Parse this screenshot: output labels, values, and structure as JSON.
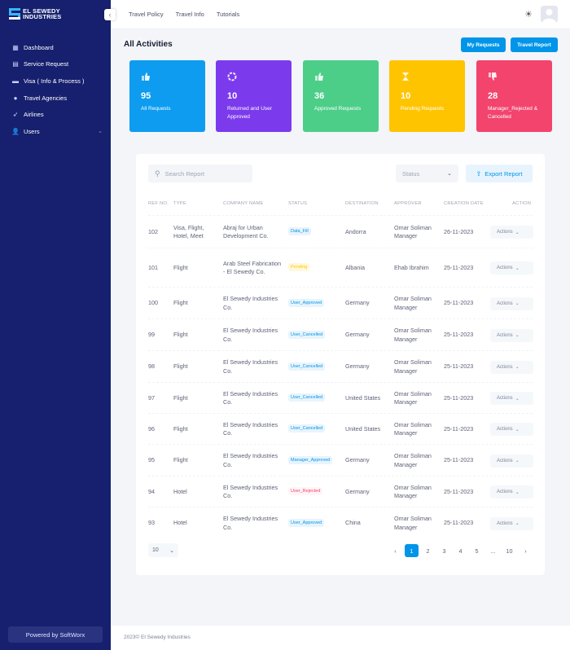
{
  "brand": {
    "name": "EL SEWEDY INDUSTRIES",
    "line1": "EL SEWEDY",
    "line2": "INDUSTRIES"
  },
  "sidebar": {
    "items": [
      {
        "label": "Dashboard",
        "icon": "dashboard-icon"
      },
      {
        "label": "Service Request",
        "icon": "service-request-icon"
      },
      {
        "label": "Visa ( Info & Process )",
        "icon": "visa-icon"
      },
      {
        "label": "Travel Agencies",
        "icon": "travel-agencies-icon"
      },
      {
        "label": "Airlines",
        "icon": "airlines-icon"
      },
      {
        "label": "Users",
        "icon": "users-icon"
      }
    ],
    "powered": "Powered by SoftWorx"
  },
  "topnav": {
    "items": [
      "Travel Policy",
      "Travel Info",
      "Tutorials"
    ]
  },
  "page": {
    "title": "All Activities",
    "my_requests": "My Requests",
    "travel_report": "Travel Report"
  },
  "stats": [
    {
      "value": "95",
      "label": "All Requests",
      "color": "#0d9cf0"
    },
    {
      "value": "10",
      "label": "Returned and User Approved",
      "color": "#7c3aed"
    },
    {
      "value": "36",
      "label": "Approved Requests",
      "color": "#4cce88"
    },
    {
      "value": "10",
      "label": "Pending Requests",
      "color": "#ffc400"
    },
    {
      "value": "28",
      "label": "Manager_Rejected & Cancelled",
      "color": "#f2446d"
    }
  ],
  "filters": {
    "search_placeholder": "Search Report",
    "status_placeholder": "Status",
    "export": "Export Report"
  },
  "table": {
    "columns": [
      "REF NO.",
      "TYPE",
      "COMPANY NAME",
      "STATUS",
      "DESTINATION",
      "APPROVER",
      "CREATION DATE",
      "ACTION"
    ],
    "rows": [
      {
        "ref": "102",
        "type": "Visa, Flight, Hotel, Meet",
        "company": "Abraj for Urban Development Co.",
        "status": "Data_Fill",
        "destination": "Andorra",
        "approver": "Omar Soliman Manager",
        "date": "26-11-2023",
        "action": "Actions"
      },
      {
        "ref": "101",
        "type": "Flight",
        "company": "Arab Steel Fabrication - El Sewedy Co.",
        "status": "Pending",
        "destination": "Albania",
        "approver": "Ehab Ibrahim",
        "date": "25-11-2023",
        "action": "Actions"
      },
      {
        "ref": "100",
        "type": "Flight",
        "company": "El Sewedy Industries Co.",
        "status": "User_Approved",
        "destination": "Germany",
        "approver": "Omar Soliman Manager",
        "date": "25-11-2023",
        "action": "Actions"
      },
      {
        "ref": "99",
        "type": "Flight",
        "company": "El Sewedy Industries Co.",
        "status": "User_Cancelled",
        "destination": "Germany",
        "approver": "Omar Soliman Manager",
        "date": "25-11-2023",
        "action": "Actions"
      },
      {
        "ref": "98",
        "type": "Flight",
        "company": "El Sewedy Industries Co.",
        "status": "User_Cancelled",
        "destination": "Germany",
        "approver": "Omar Soliman Manager",
        "date": "25-11-2023",
        "action": "Actions"
      },
      {
        "ref": "97",
        "type": "Flight",
        "company": "El Sewedy Industries Co.",
        "status": "User_Cancelled",
        "destination": "United States",
        "approver": "Omar Soliman Manager",
        "date": "25-11-2023",
        "action": "Actions"
      },
      {
        "ref": "96",
        "type": "Flight",
        "company": "El Sewedy Industries Co.",
        "status": "User_Cancelled",
        "destination": "United States",
        "approver": "Omar Soliman Manager",
        "date": "25-11-2023",
        "action": "Actions"
      },
      {
        "ref": "95",
        "type": "Flight",
        "company": "El Sewedy Industries Co.",
        "status": "Manager_Approved",
        "destination": "Germany",
        "approver": "Omar Soliman Manager",
        "date": "25-11-2023",
        "action": "Actions"
      },
      {
        "ref": "94",
        "type": "Hotel",
        "company": "El Sewedy Industries Co.",
        "status": "User_Rejected",
        "destination": "Germany",
        "approver": "Omar Soliman Manager",
        "date": "25-11-2023",
        "action": "Actions"
      },
      {
        "ref": "93",
        "type": "Hotel",
        "company": "El Sewedy Industries Co.",
        "status": "User_Approved",
        "destination": "China",
        "approver": "Omar Soliman Manager",
        "date": "25-11-2023",
        "action": "Actions"
      }
    ]
  },
  "status_colors": {
    "Data_Fill": {
      "bg": "#e8f4fd",
      "fg": "#0095e8"
    },
    "Pending": {
      "bg": "#fff8dd",
      "fg": "#ffc700"
    },
    "User_Approved": {
      "bg": "#e8f4fd",
      "fg": "#0095e8"
    },
    "User_Cancelled": {
      "bg": "#e8f4fd",
      "fg": "#0095e8"
    },
    "Manager_Approved": {
      "bg": "#e8f4fd",
      "fg": "#0095e8"
    },
    "User_Rejected": {
      "bg": "#fff5f8",
      "fg": "#f1416c"
    }
  },
  "pagination": {
    "page_size": "10",
    "pages": [
      "1",
      "2",
      "3",
      "4",
      "5",
      "...",
      "10"
    ],
    "current": "1"
  },
  "footer": {
    "text": "2023© El Sewedy Industries"
  }
}
